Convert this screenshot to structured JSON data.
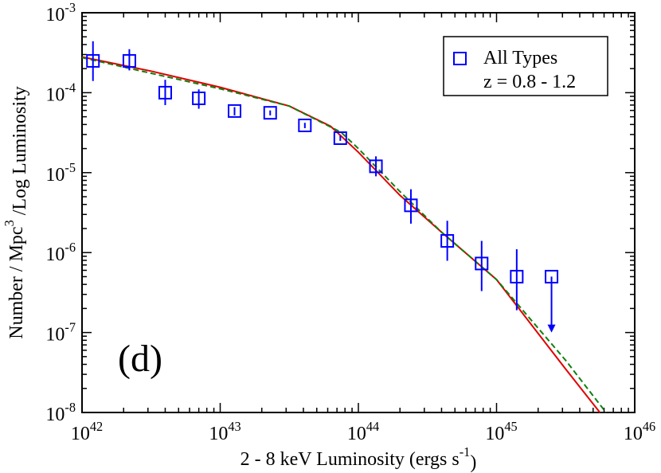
{
  "chart_data": {
    "type": "scatter",
    "xlabel": "2 - 8 keV Luminosity  (ergs s^{-1})",
    "ylabel": "Number / Mpc^{3} /Log Luminosity",
    "annotation": "(d)",
    "xlog": true,
    "ylog": true,
    "xlim": [
      1e+42,
      1e+46
    ],
    "ylim": [
      1e-08,
      0.001
    ],
    "xticks": [
      {
        "value": 1e+42,
        "label": "10^{42}"
      },
      {
        "value": 1e+43,
        "label": "10^{43}"
      },
      {
        "value": 1e+44,
        "label": "10^{44}"
      },
      {
        "value": 1e+45,
        "label": "10^{45}"
      },
      {
        "value": 1e+46,
        "label": "10^{46}"
      }
    ],
    "yticks": [
      {
        "value": 1e-08,
        "label": "10^{-8}"
      },
      {
        "value": 1e-07,
        "label": "10^{-7}"
      },
      {
        "value": 1e-06,
        "label": "10^{-6}"
      },
      {
        "value": 1e-05,
        "label": "10^{-5}"
      },
      {
        "value": 0.0001,
        "label": "10^{-4}"
      },
      {
        "value": 0.001,
        "label": "10^{-3}"
      }
    ],
    "legend_position": "upper right",
    "legend_note": "z = 0.8 - 1.2",
    "series": [
      {
        "name": "All Types",
        "color": "#0000ff",
        "x": [
          1.2e+42,
          2.2e+42,
          4e+42,
          7e+42,
          1.27e+43,
          2.3e+43,
          4.1e+43,
          7.4e+43,
          1.34e+44,
          2.4e+44,
          4.4e+44,
          7.8e+44,
          1.4e+45,
          2.5e+45
        ],
        "values": [
          0.00025,
          0.00025,
          0.0001,
          8.5e-05,
          5.9e-05,
          5.6e-05,
          3.9e-05,
          2.7e-05,
          1.2e-05,
          3.9e-06,
          1.4e-06,
          7.3e-07,
          5e-07,
          5e-07
        ],
        "err_high": [
          0.00044,
          0.00035,
          0.000145,
          0.00011,
          6.6e-05,
          6e-05,
          4.2e-05,
          2.9e-05,
          1.6e-05,
          6.2e-06,
          2.5e-06,
          1.4e-06,
          1.1e-06,
          5e-07
        ],
        "err_low": [
          0.00014,
          0.00019,
          7e-05,
          6.3e-05,
          5.2e-05,
          5.2e-05,
          3.6e-05,
          2.5e-05,
          9e-06,
          2.3e-06,
          7.9e-07,
          3.3e-07,
          1.9e-07,
          1e-07
        ],
        "upper_limit": [
          false,
          false,
          false,
          false,
          false,
          false,
          false,
          false,
          false,
          false,
          false,
          false,
          false,
          true
        ]
      }
    ],
    "lines": [
      {
        "color": "#e00000",
        "dashed": false,
        "x": [
          1e+42,
          3.16e+42,
          1e+43,
          3.16e+43,
          6.3e+43,
          1e+44,
          2e+44,
          4e+44,
          1e+45,
          3.16e+45,
          5.6e+45
        ],
        "values": [
          0.00028,
          0.000186,
          0.000117,
          6.8e-05,
          3.8e-05,
          1.8e-05,
          5.2e-06,
          1.8e-06,
          4.6e-07,
          3.5e-08,
          1e-08
        ]
      },
      {
        "color": "#108010",
        "dashed": true,
        "x": [
          1e+42,
          3.16e+42,
          1e+43,
          3.16e+43,
          7.5e+43,
          1e+44,
          2e+44,
          4e+44,
          1e+45,
          3.16e+45,
          6.2e+45
        ],
        "values": [
          0.000275,
          0.000175,
          0.000112,
          6.8e-05,
          3.2e-05,
          2e-05,
          5.8e-06,
          1.8e-06,
          4.6e-07,
          4.5e-08,
          1e-08
        ]
      }
    ]
  }
}
